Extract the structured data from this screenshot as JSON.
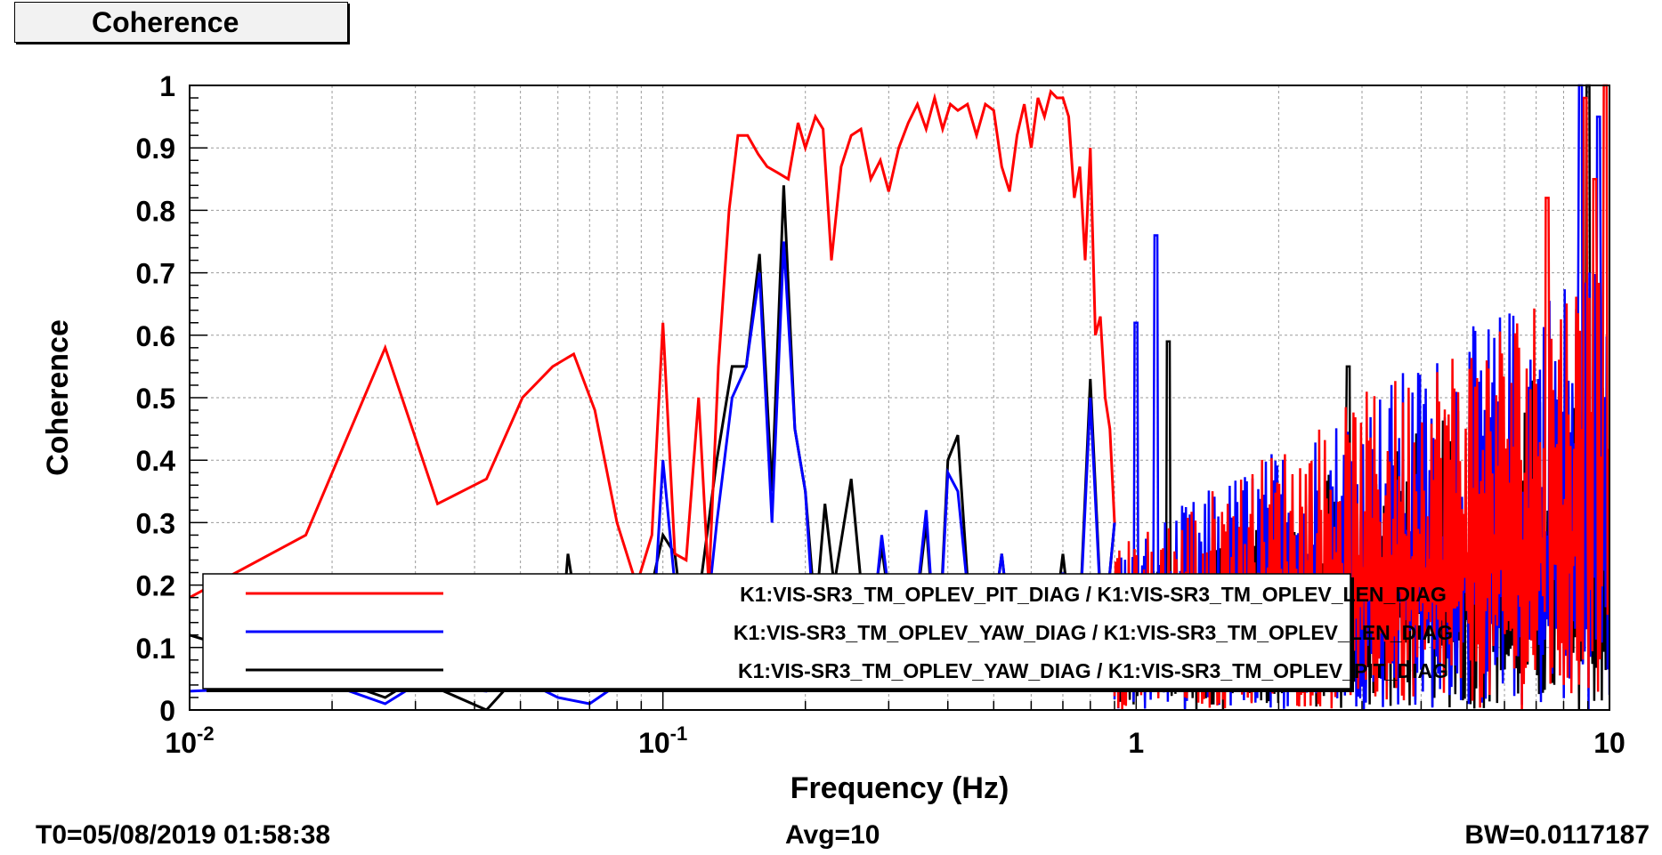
{
  "title": "Coherence",
  "footer": {
    "t0": "T0=05/08/2019 01:58:38",
    "avg": "Avg=10",
    "bw": "BW=0.0117187"
  },
  "colors": {
    "red": "#ff0000",
    "blue": "#0000ff",
    "black": "#000000",
    "grid": "#9a9a9a"
  },
  "chart_data": {
    "type": "line",
    "title": "Coherence",
    "xlabel": "Frequency (Hz)",
    "ylabel": "Coherence",
    "xscale": "log",
    "xlim": [
      0.01,
      10
    ],
    "ylim": [
      0,
      1
    ],
    "grid": true,
    "legend_position": "bottom",
    "x_ticks": [
      {
        "value": 0.01,
        "base": "10",
        "exp": "-2"
      },
      {
        "value": 0.1,
        "base": "10",
        "exp": "-1"
      },
      {
        "value": 1,
        "base": "1",
        "exp": ""
      },
      {
        "value": 10,
        "base": "10",
        "exp": ""
      }
    ],
    "y_ticks": [
      "0",
      "0.1",
      "0.2",
      "0.3",
      "0.4",
      "0.5",
      "0.6",
      "0.7",
      "0.8",
      "0.9",
      "1"
    ],
    "series": [
      {
        "name": "K1:VIS-SR3_TM_OPLEV_PIT_DIAG / K1:VIS-SR3_TM_OPLEV_LEN_DIAG",
        "color": "#ff0000",
        "x": [
          0.01,
          0.0176,
          0.0259,
          0.0334,
          0.0424,
          0.0505,
          0.0585,
          0.0648,
          0.0718,
          0.08,
          0.088,
          0.0948,
          0.1,
          0.106,
          0.112,
          0.119,
          0.125,
          0.131,
          0.138,
          0.144,
          0.151,
          0.159,
          0.166,
          0.175,
          0.184,
          0.193,
          0.2,
          0.21,
          0.218,
          0.227,
          0.238,
          0.25,
          0.262,
          0.275,
          0.288,
          0.3,
          0.315,
          0.33,
          0.345,
          0.36,
          0.375,
          0.39,
          0.405,
          0.42,
          0.44,
          0.46,
          0.48,
          0.5,
          0.52,
          0.54,
          0.56,
          0.58,
          0.6,
          0.62,
          0.64,
          0.66,
          0.68,
          0.7,
          0.72,
          0.74,
          0.76,
          0.78,
          0.8,
          0.82,
          0.84,
          0.86,
          0.88,
          0.9
        ],
        "y": [
          0.18,
          0.28,
          0.58,
          0.33,
          0.37,
          0.5,
          0.55,
          0.57,
          0.48,
          0.3,
          0.2,
          0.28,
          0.62,
          0.25,
          0.24,
          0.5,
          0.2,
          0.55,
          0.8,
          0.92,
          0.92,
          0.89,
          0.87,
          0.86,
          0.85,
          0.94,
          0.9,
          0.95,
          0.93,
          0.72,
          0.87,
          0.92,
          0.93,
          0.85,
          0.88,
          0.83,
          0.9,
          0.94,
          0.97,
          0.93,
          0.98,
          0.93,
          0.97,
          0.96,
          0.97,
          0.92,
          0.97,
          0.96,
          0.87,
          0.83,
          0.92,
          0.97,
          0.9,
          0.98,
          0.95,
          0.99,
          0.98,
          0.98,
          0.95,
          0.82,
          0.87,
          0.72,
          0.9,
          0.6,
          0.63,
          0.5,
          0.45,
          0.3
        ]
      },
      {
        "name": "K1:VIS-SR3_TM_OPLEV_YAW_DIAG / K1:VIS-SR3_TM_OPLEV_LEN_DIAG",
        "color": "#0000ff",
        "x": [
          0.01,
          0.02,
          0.0259,
          0.03,
          0.0424,
          0.05,
          0.06,
          0.07,
          0.08,
          0.088,
          0.0948,
          0.1,
          0.106,
          0.112,
          0.12,
          0.13,
          0.14,
          0.15,
          0.16,
          0.17,
          0.18,
          0.19,
          0.2,
          0.21,
          0.22,
          0.23,
          0.25,
          0.27,
          0.29,
          0.31,
          0.33,
          0.36,
          0.38,
          0.4,
          0.42,
          0.45,
          0.48,
          0.52,
          0.56,
          0.6,
          0.65,
          0.7,
          0.75,
          0.8,
          0.85,
          0.9
        ],
        "y": [
          0.03,
          0.04,
          0.01,
          0.04,
          0.03,
          0.05,
          0.02,
          0.01,
          0.04,
          0.05,
          0.1,
          0.4,
          0.2,
          0.1,
          0.05,
          0.3,
          0.5,
          0.55,
          0.7,
          0.3,
          0.75,
          0.45,
          0.35,
          0.1,
          0.2,
          0.18,
          0.15,
          0.05,
          0.28,
          0.1,
          0.05,
          0.32,
          0.05,
          0.38,
          0.35,
          0.12,
          0.04,
          0.25,
          0.03,
          0.2,
          0.03,
          0.22,
          0.05,
          0.5,
          0.1,
          0.3
        ]
      },
      {
        "name": "K1:VIS-SR3_TM_OPLEV_YAW_DIAG / K1:VIS-SR3_TM_OPLEV_PIT_DIAG",
        "color": "#000000",
        "x": [
          0.01,
          0.02,
          0.0259,
          0.03,
          0.0424,
          0.05,
          0.06,
          0.063,
          0.07,
          0.08,
          0.088,
          0.0948,
          0.1,
          0.106,
          0.112,
          0.12,
          0.13,
          0.14,
          0.15,
          0.16,
          0.17,
          0.18,
          0.19,
          0.2,
          0.21,
          0.22,
          0.23,
          0.25,
          0.27,
          0.29,
          0.31,
          0.33,
          0.36,
          0.38,
          0.4,
          0.42,
          0.45,
          0.48,
          0.52,
          0.56,
          0.6,
          0.65,
          0.7,
          0.75,
          0.8,
          0.85,
          0.9
        ],
        "y": [
          0.12,
          0.05,
          0.02,
          0.05,
          0.0,
          0.06,
          0.05,
          0.25,
          0.03,
          0.05,
          0.1,
          0.2,
          0.28,
          0.25,
          0.1,
          0.2,
          0.4,
          0.55,
          0.55,
          0.73,
          0.35,
          0.84,
          0.45,
          0.35,
          0.15,
          0.33,
          0.2,
          0.37,
          0.1,
          0.26,
          0.1,
          0.05,
          0.3,
          0.05,
          0.4,
          0.44,
          0.1,
          0.05,
          0.25,
          0.03,
          0.15,
          0.05,
          0.25,
          0.05,
          0.53,
          0.1,
          0.3
        ]
      }
    ],
    "noisy_region": {
      "x_start": 0.9,
      "x_end": 10,
      "series": [
        {
          "color": "#000000",
          "min": 0.0,
          "max": 0.6,
          "spikes": [
            {
              "x": 1.17,
              "y": 0.59
            },
            {
              "x": 2.8,
              "y": 0.55
            },
            {
              "x": 9.0,
              "y": 1.0
            }
          ]
        },
        {
          "color": "#0000ff",
          "min": 0.0,
          "max": 0.75,
          "spikes": [
            {
              "x": 1.1,
              "y": 0.76
            },
            {
              "x": 1.0,
              "y": 0.62
            },
            {
              "x": 8.7,
              "y": 1.0
            },
            {
              "x": 9.5,
              "y": 0.95
            }
          ]
        },
        {
          "color": "#ff0000",
          "min": 0.0,
          "max": 0.75,
          "spikes": [
            {
              "x": 8.9,
              "y": 0.98
            },
            {
              "x": 9.8,
              "y": 1.0
            },
            {
              "x": 9.3,
              "y": 0.85
            },
            {
              "x": 7.4,
              "y": 0.82
            }
          ]
        }
      ]
    }
  }
}
